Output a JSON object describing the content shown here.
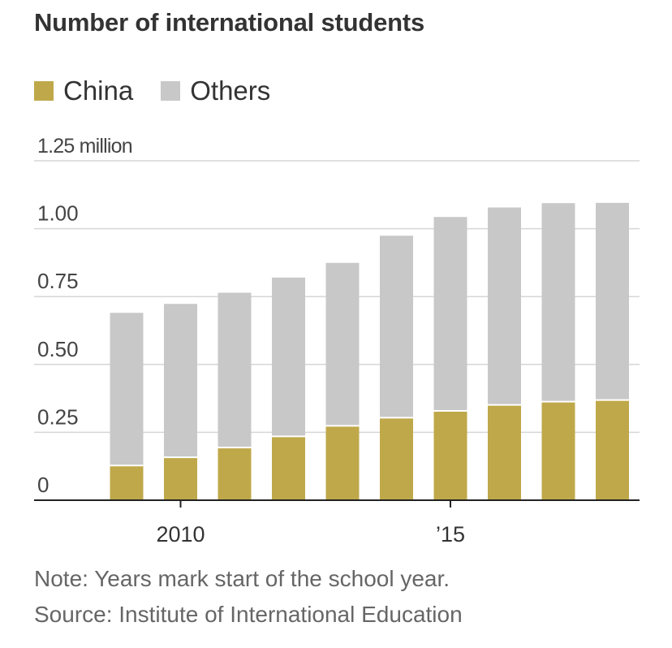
{
  "chart_data": {
    "type": "bar",
    "stacked": true,
    "title": "Number of international students",
    "ylabel": "",
    "xlabel": "",
    "ylim": [
      0,
      1.25
    ],
    "yticks": [
      {
        "value": 0,
        "label": "0"
      },
      {
        "value": 0.25,
        "label": "0.25"
      },
      {
        "value": 0.5,
        "label": "0.50"
      },
      {
        "value": 0.75,
        "label": "0.75"
      },
      {
        "value": 1.0,
        "label": "1.00"
      },
      {
        "value": 1.25,
        "label": "1.25 million"
      }
    ],
    "categories": [
      2009,
      2010,
      2011,
      2012,
      2013,
      2014,
      2015,
      2016,
      2017,
      2018
    ],
    "xticks": [
      {
        "category": 2010,
        "label": "2010"
      },
      {
        "category": 2015,
        "label": "’15"
      }
    ],
    "series": [
      {
        "name": "China",
        "color": "#bfa84a",
        "values": [
          0.128,
          0.158,
          0.194,
          0.235,
          0.274,
          0.304,
          0.329,
          0.351,
          0.363,
          0.369
        ]
      },
      {
        "name": "Others",
        "color": "#c8c8c8",
        "values": [
          0.562,
          0.565,
          0.57,
          0.585,
          0.6,
          0.67,
          0.714,
          0.727,
          0.731,
          0.726
        ]
      }
    ],
    "grid": true,
    "legend_position": "top-left"
  },
  "footer": {
    "note": "Note: Years mark start of the school year.",
    "source": "Source: Institute of International Education"
  }
}
